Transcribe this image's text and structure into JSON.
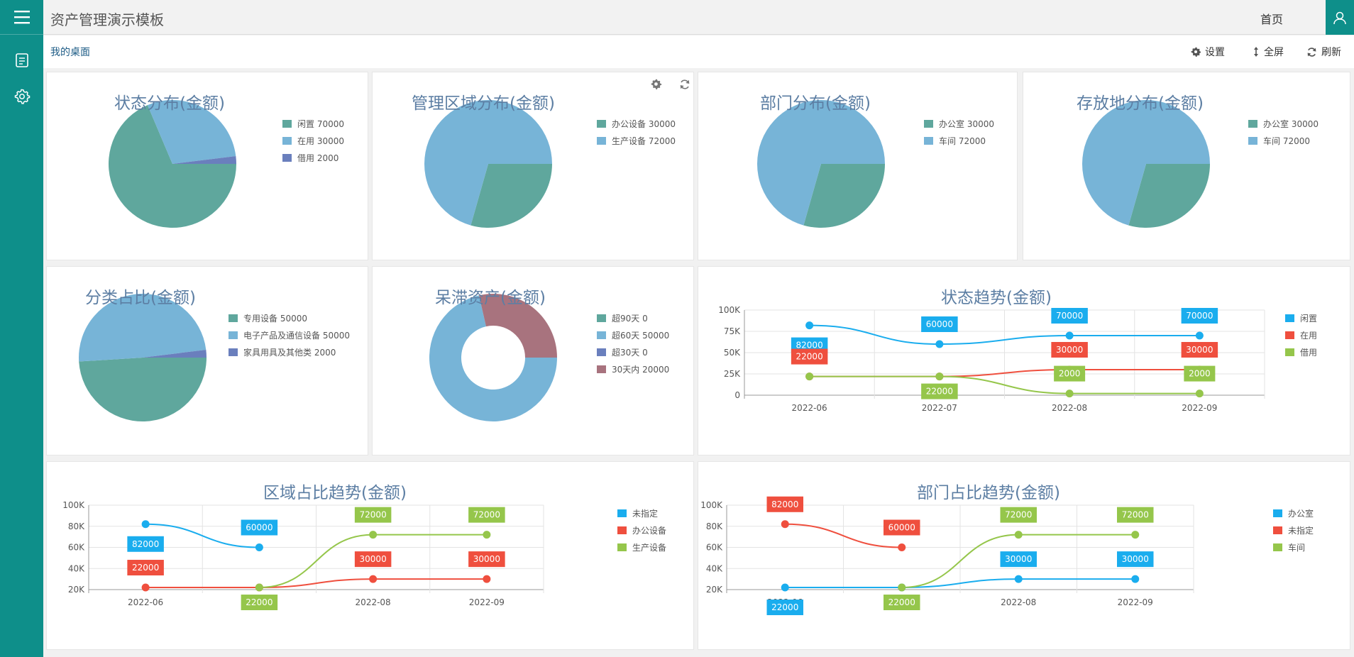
{
  "header": {
    "title": "资产管理演示模板",
    "home": "首页"
  },
  "breadcrumb": "我的桌面",
  "toolbar": {
    "settings": "设置",
    "fullscreen": "全屏",
    "refresh": "刷新"
  },
  "colors": {
    "teal": "#0e8f8a",
    "pie_green": "#5fa79d",
    "pie_blue": "#77b4d7",
    "pie_purple": "#6a7fbd",
    "pie_mauve": "#a8737e",
    "line_blue": "#1aadee",
    "line_red": "#ef4f3e",
    "line_green": "#95c64b"
  },
  "charts": [
    {
      "id": "c0",
      "type": "pie",
      "title": "状态分布(金额)",
      "legend": [
        "闲置 70000",
        "在用 30000",
        "借用 2000"
      ],
      "series": [
        {
          "name": "闲置",
          "value": 70000,
          "color": "#5fa79d"
        },
        {
          "name": "在用",
          "value": 30000,
          "color": "#77b4d7"
        },
        {
          "name": "借用",
          "value": 2000,
          "color": "#6a7fbd"
        }
      ]
    },
    {
      "id": "c1",
      "type": "pie",
      "title": "管理区域分布(金额)",
      "legend": [
        "办公设备 30000",
        "生产设备 72000"
      ],
      "series": [
        {
          "name": "办公设备",
          "value": 30000,
          "color": "#5fa79d"
        },
        {
          "name": "生产设备",
          "value": 72000,
          "color": "#77b4d7"
        }
      ]
    },
    {
      "id": "c2",
      "type": "pie",
      "title": "部门分布(金额)",
      "legend": [
        "办公室 30000",
        "车间 72000"
      ],
      "series": [
        {
          "name": "办公室",
          "value": 30000,
          "color": "#5fa79d"
        },
        {
          "name": "车间",
          "value": 72000,
          "color": "#77b4d7"
        }
      ]
    },
    {
      "id": "c3",
      "type": "pie",
      "title": "存放地分布(金额)",
      "legend": [
        "办公室 30000",
        "车间 72000"
      ],
      "series": [
        {
          "name": "办公室",
          "value": 30000,
          "color": "#5fa79d"
        },
        {
          "name": "车间",
          "value": 72000,
          "color": "#77b4d7"
        }
      ]
    },
    {
      "id": "c4",
      "type": "pie",
      "title": "分类占比(金额)",
      "legend": [
        "专用设备 50000",
        "电子产品及通信设备 50000",
        "家具用具及其他类 2000"
      ],
      "series": [
        {
          "name": "专用设备",
          "value": 50000,
          "color": "#5fa79d"
        },
        {
          "name": "电子产品及通信设备",
          "value": 50000,
          "color": "#77b4d7"
        },
        {
          "name": "家具用具及其他类",
          "value": 2000,
          "color": "#6a7fbd"
        }
      ]
    },
    {
      "id": "c5",
      "type": "donut",
      "title": "呆滞资产(金额)",
      "legend": [
        "超90天 0",
        "超60天 50000",
        "超30天 0",
        "30天内 20000"
      ],
      "series": [
        {
          "name": "超90天",
          "value": 0,
          "color": "#5fa79d"
        },
        {
          "name": "超60天",
          "value": 50000,
          "color": "#77b4d7"
        },
        {
          "name": "超30天",
          "value": 0,
          "color": "#6a7fbd"
        },
        {
          "name": "30天内",
          "value": 20000,
          "color": "#a8737e"
        }
      ]
    },
    {
      "id": "c6",
      "type": "line",
      "title": "状态趋势(金额)",
      "categories": [
        "2022-06",
        "2022-07",
        "2022-08",
        "2022-09"
      ],
      "yticks": [
        "0",
        "25K",
        "50K",
        "75K",
        "100K"
      ],
      "ylim": [
        0,
        100000
      ],
      "legend": [
        "闲置",
        "在用",
        "借用"
      ],
      "series": [
        {
          "name": "闲置",
          "color": "#1aadee",
          "values": [
            82000,
            60000,
            70000,
            70000
          ],
          "labels": [
            "82000",
            "60000",
            "70000",
            "70000"
          ]
        },
        {
          "name": "在用",
          "color": "#ef4f3e",
          "values": [
            22000,
            22000,
            30000,
            30000
          ],
          "labels": [
            "22000",
            "",
            "30000",
            "30000"
          ]
        },
        {
          "name": "借用",
          "color": "#95c64b",
          "values": [
            22000,
            22000,
            2000,
            2000
          ],
          "labels": [
            "",
            "22000",
            "2000",
            "2000"
          ]
        }
      ]
    },
    {
      "id": "c7",
      "type": "line",
      "title": "区域占比趋势(金额)",
      "categories": [
        "2022-06",
        "2022-07",
        "2022-08",
        "2022-09"
      ],
      "yticks": [
        "20K",
        "40K",
        "60K",
        "80K",
        "100K"
      ],
      "ylim": [
        20000,
        100000
      ],
      "legend": [
        "未指定",
        "办公设备",
        "生产设备"
      ],
      "series": [
        {
          "name": "未指定",
          "color": "#1aadee",
          "values": [
            82000,
            60000,
            null,
            null
          ],
          "labels": [
            "82000",
            "60000",
            "",
            ""
          ]
        },
        {
          "name": "办公设备",
          "color": "#ef4f3e",
          "values": [
            22000,
            22000,
            30000,
            30000
          ],
          "labels": [
            "22000",
            "",
            "30000",
            "30000"
          ]
        },
        {
          "name": "生产设备",
          "color": "#95c64b",
          "values": [
            null,
            22000,
            72000,
            72000
          ],
          "labels": [
            "",
            "22000",
            "72000",
            "72000"
          ]
        }
      ]
    },
    {
      "id": "c8",
      "type": "line",
      "title": "部门占比趋势(金额)",
      "categories": [
        "2022-06",
        "2022-07",
        "2022-08",
        "2022-09"
      ],
      "yticks": [
        "20K",
        "40K",
        "60K",
        "80K",
        "100K"
      ],
      "ylim": [
        20000,
        100000
      ],
      "legend": [
        "办公室",
        "未指定",
        "车间"
      ],
      "series": [
        {
          "name": "办公室",
          "color": "#1aadee",
          "values": [
            22000,
            22000,
            30000,
            30000
          ],
          "labels": [
            "22000",
            "",
            "30000",
            "30000"
          ]
        },
        {
          "name": "未指定",
          "color": "#ef4f3e",
          "values": [
            82000,
            60000,
            null,
            null
          ],
          "labels": [
            "82000",
            "60000",
            "",
            ""
          ]
        },
        {
          "name": "车间",
          "color": "#95c64b",
          "values": [
            null,
            22000,
            72000,
            72000
          ],
          "labels": [
            "",
            "22000",
            "72000",
            "72000"
          ]
        }
      ]
    }
  ]
}
